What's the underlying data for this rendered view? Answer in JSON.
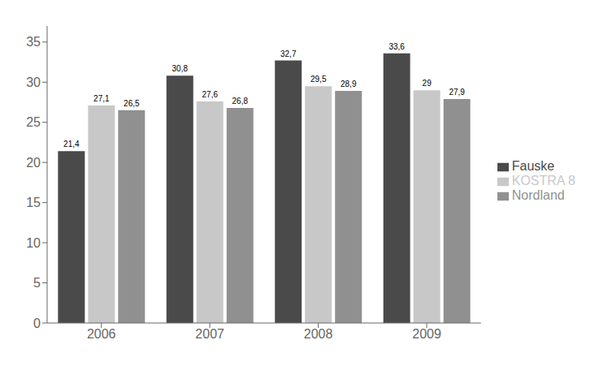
{
  "chart_data": {
    "type": "bar",
    "categories": [
      "2006",
      "2007",
      "2008",
      "2009"
    ],
    "series": [
      {
        "name": "Fauske",
        "color": "#4a4a4a",
        "values": [
          21.4,
          30.8,
          32.7,
          33.6
        ],
        "value_labels": [
          "21,4",
          "30,8",
          "32,7",
          "33,6"
        ]
      },
      {
        "name": "KOSTRA 8",
        "color": "#c8c8c8",
        "values": [
          27.1,
          27.6,
          29.5,
          29.0
        ],
        "value_labels": [
          "27,1",
          "27,6",
          "29,5",
          "29"
        ]
      },
      {
        "name": "Nordland",
        "color": "#909090",
        "values": [
          26.5,
          26.8,
          28.9,
          27.9
        ],
        "value_labels": [
          "26,5",
          "26,8",
          "28,9",
          "27,9"
        ]
      }
    ],
    "ylim": [
      0,
      37
    ],
    "yticks": [
      0,
      5,
      10,
      15,
      20,
      25,
      30,
      35
    ],
    "grid": false,
    "legend": "right",
    "data_labels": true
  }
}
